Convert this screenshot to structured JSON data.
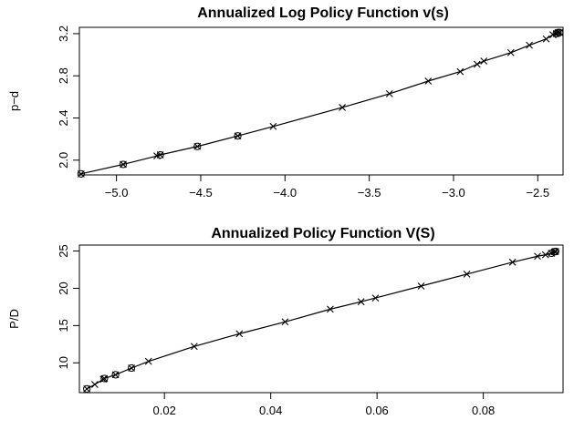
{
  "chart_data": [
    {
      "type": "line",
      "title": "Annualized Log Policy Function v(s)",
      "xlabel": "",
      "ylabel": "p−d",
      "xlim": [
        -5.22,
        -2.35
      ],
      "ylim": [
        1.86,
        3.26
      ],
      "x_ticks": [
        -5.0,
        -4.5,
        -4.0,
        -3.5,
        -3.0,
        -2.5
      ],
      "x_tick_labels": [
        "−5.0",
        "−4.5",
        "−4.0",
        "−3.5",
        "−3.0",
        "−2.5"
      ],
      "y_ticks": [
        2.0,
        2.4,
        2.8,
        3.2
      ],
      "y_tick_labels": [
        "2.0",
        "2.4",
        "2.8",
        "3.2"
      ],
      "grid": false,
      "line_color": "#000000",
      "series": [
        {
          "marker": "x",
          "x": [
            -5.21,
            -4.96,
            -4.76,
            -4.74,
            -4.52,
            -4.28,
            -4.07,
            -3.66,
            -3.38,
            -3.15,
            -2.96,
            -2.86,
            -2.82,
            -2.66,
            -2.55,
            -2.45,
            -2.41,
            -2.39,
            -2.38,
            -2.37
          ],
          "y": [
            1.87,
            1.96,
            2.04,
            2.05,
            2.13,
            2.23,
            2.32,
            2.5,
            2.63,
            2.75,
            2.84,
            2.91,
            2.94,
            3.02,
            3.09,
            3.15,
            3.19,
            3.2,
            3.21,
            3.21
          ]
        },
        {
          "marker": "o",
          "x": [
            -5.21,
            -4.96,
            -4.74,
            -4.52,
            -4.28,
            -2.39,
            -2.38,
            -2.37
          ],
          "y": [
            1.87,
            1.96,
            2.05,
            2.13,
            2.23,
            3.2,
            3.21,
            3.21
          ]
        }
      ]
    },
    {
      "type": "line",
      "title": "Annualized Policy Function V(S)",
      "xlabel": "",
      "ylabel": "P/D",
      "xlim": [
        0.004,
        0.095
      ],
      "ylim": [
        6.0,
        25.8
      ],
      "x_ticks": [
        0.02,
        0.04,
        0.06,
        0.08
      ],
      "x_tick_labels": [
        "0.02",
        "0.04",
        "0.06",
        "0.08"
      ],
      "y_ticks": [
        10,
        15,
        20,
        25
      ],
      "y_tick_labels": [
        "10",
        "15",
        "20",
        "25"
      ],
      "grid": false,
      "line_color": "#000000",
      "series": [
        {
          "marker": "x",
          "x": [
            0.0054,
            0.0069,
            0.0085,
            0.0087,
            0.0108,
            0.0138,
            0.017,
            0.0256,
            0.0341,
            0.0427,
            0.0512,
            0.057,
            0.0597,
            0.0683,
            0.0769,
            0.0855,
            0.0902,
            0.0917,
            0.0928,
            0.0934,
            0.0936
          ],
          "y": [
            6.5,
            7.1,
            7.8,
            7.9,
            8.4,
            9.3,
            10.2,
            12.2,
            13.9,
            15.5,
            17.2,
            18.2,
            18.7,
            20.3,
            21.9,
            23.5,
            24.3,
            24.5,
            24.7,
            24.9,
            24.95
          ]
        },
        {
          "marker": "o",
          "x": [
            0.0054,
            0.0087,
            0.0108,
            0.0138,
            0.0928,
            0.0934,
            0.0936
          ],
          "y": [
            6.5,
            7.9,
            8.4,
            9.3,
            24.7,
            24.9,
            24.95
          ]
        }
      ]
    }
  ]
}
